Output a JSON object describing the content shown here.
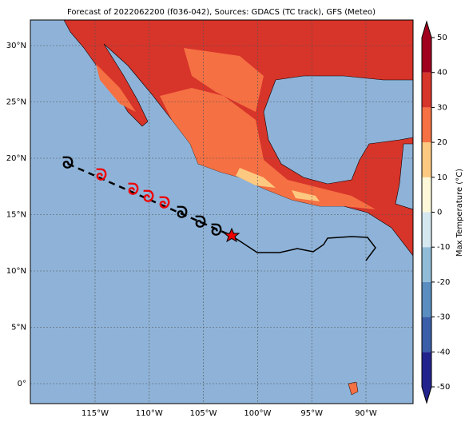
{
  "map": {
    "title": "Forecast of 2022062200 (f036-042), Sources: GDACS (TC track), GFS (Meteo)",
    "xticks": [
      {
        "value": -115,
        "label": "115°W"
      },
      {
        "value": -110,
        "label": "110°W"
      },
      {
        "value": -105,
        "label": "105°W"
      },
      {
        "value": -100,
        "label": "100°W"
      },
      {
        "value": -95,
        "label": "95°W"
      },
      {
        "value": -90,
        "label": "90°W"
      }
    ],
    "yticks": [
      {
        "value": 0,
        "label": "0°"
      },
      {
        "value": 5,
        "label": "5°N"
      },
      {
        "value": 10,
        "label": "10°N"
      },
      {
        "value": 15,
        "label": "15°N"
      },
      {
        "value": 20,
        "label": "20°N"
      },
      {
        "value": 25,
        "label": "25°N"
      },
      {
        "value": 30,
        "label": "30°N"
      }
    ],
    "colorbar": {
      "label": "Max Temperature (°C)",
      "lim": [
        -50,
        50
      ],
      "ticks": [
        -50,
        -40,
        -30,
        -20,
        -10,
        0,
        10,
        20,
        30,
        40,
        50
      ],
      "colors": [
        "#23238e",
        "#3a5fa8",
        "#5a8ec0",
        "#90bcd8",
        "#d5e8f0",
        "#fdf8d8",
        "#fdc880",
        "#f57043",
        "#d7342a",
        "#a0001e"
      ]
    }
  }
}
